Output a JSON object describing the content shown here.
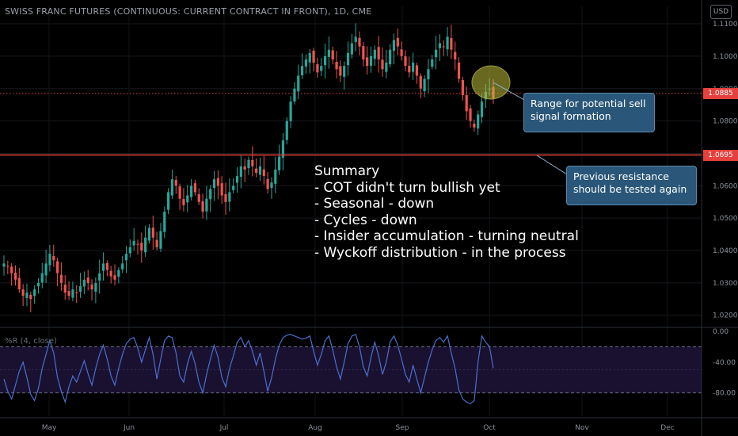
{
  "header": {
    "title": "SWISS FRANC FUTURES (CONTINUOUS: CURRENT CONTRACT IN FRONT), 1D, CME",
    "currency_button": "USD"
  },
  "colors": {
    "background": "#000000",
    "up_candle": "#26a69a",
    "down_candle": "#ef5350",
    "resistance_line": "#e5403d",
    "oscillator_line": "#4a6fd0",
    "callout_fill": "#2a5779"
  },
  "annotations": {
    "summary": [
      "Summary",
      "- COT didn't turn bullish yet",
      "- Seasonal - down",
      "- Cycles - down",
      "- Insider accumulation - turning neutral",
      "- Wyckoff distribution - in the process"
    ],
    "callout_sell": [
      "Range for potential sell",
      "signal formation"
    ],
    "callout_resistance": [
      "Previous resistance",
      "should be tested again"
    ]
  },
  "price_tags": {
    "last_price": "1.0885",
    "resistance": "1.0695"
  },
  "oscillator": {
    "label": "%R (4, close)"
  },
  "chart_data": [
    {
      "type": "candlestick",
      "x_axis_labels": [
        "May",
        "Jun",
        "Jul",
        "Aug",
        "Sep",
        "Oct",
        "Nov",
        "Dec"
      ],
      "y_ticks": [
        "1.1100",
        "1.1000",
        "1.0900",
        "1.0800",
        "1.0700",
        "1.0600",
        "1.0500",
        "1.0400",
        "1.0300",
        "1.0200"
      ],
      "ylim": [
        1.017,
        1.1105
      ],
      "horizontal_lines": [
        {
          "label": "last_price",
          "value": 1.0885,
          "style": "dotted"
        },
        {
          "label": "resistance",
          "value": 1.0695,
          "style": "solid"
        }
      ],
      "close_series_approx": [
        1.036,
        1.035,
        1.033,
        1.031,
        1.028,
        1.026,
        1.027,
        1.025,
        1.028,
        1.03,
        1.033,
        1.036,
        1.039,
        1.037,
        1.033,
        1.03,
        1.027,
        1.026,
        1.028,
        1.027,
        1.029,
        1.031,
        1.03,
        1.028,
        1.03,
        1.033,
        1.036,
        1.034,
        1.032,
        1.031,
        1.034,
        1.036,
        1.039,
        1.041,
        1.043,
        1.042,
        1.04,
        1.044,
        1.047,
        1.044,
        1.041,
        1.046,
        1.052,
        1.058,
        1.062,
        1.06,
        1.056,
        1.054,
        1.057,
        1.06,
        1.058,
        1.055,
        1.052,
        1.056,
        1.059,
        1.062,
        1.06,
        1.057,
        1.055,
        1.058,
        1.06,
        1.063,
        1.066,
        1.065,
        1.068,
        1.066,
        1.064,
        1.066,
        1.063,
        1.059,
        1.061,
        1.065,
        1.069,
        1.074,
        1.08,
        1.086,
        1.09,
        1.094,
        1.097,
        1.099,
        1.101,
        1.098,
        1.095,
        1.097,
        1.1,
        1.102,
        1.099,
        1.096,
        1.094,
        1.097,
        1.101,
        1.104,
        1.106,
        1.103,
        1.099,
        1.097,
        1.1,
        1.102,
        1.099,
        1.096,
        1.098,
        1.102,
        1.105,
        1.103,
        1.1,
        1.097,
        1.095,
        1.098,
        1.094,
        1.09,
        1.093,
        1.096,
        1.099,
        1.102,
        1.104,
        1.103,
        1.106,
        1.102,
        1.099,
        1.093,
        1.088,
        1.083,
        1.08,
        1.078,
        1.082,
        1.086,
        1.089,
        1.09,
        1.087
      ],
      "event_range_note": "price ranges approx 1.020 to 1.110 between May and early October"
    },
    {
      "type": "line",
      "name": "%R (4, close)",
      "y_ticks": [
        "0.00",
        "-40.00",
        "-80.00"
      ],
      "ylim": [
        -100,
        0
      ],
      "levels": [
        -20,
        -80
      ],
      "values": [
        -62,
        -78,
        -88,
        -70,
        -52,
        -40,
        -60,
        -82,
        -90,
        -74,
        -48,
        -30,
        -12,
        -28,
        -60,
        -78,
        -92,
        -72,
        -58,
        -66,
        -52,
        -38,
        -55,
        -70,
        -48,
        -30,
        -18,
        -36,
        -58,
        -70,
        -48,
        -30,
        -16,
        -10,
        -8,
        -22,
        -40,
        -24,
        -8,
        -30,
        -62,
        -36,
        -12,
        -6,
        -8,
        -28,
        -58,
        -66,
        -42,
        -26,
        -42,
        -66,
        -80,
        -56,
        -36,
        -18,
        -34,
        -60,
        -72,
        -48,
        -32,
        -14,
        -8,
        -20,
        -12,
        -26,
        -44,
        -28,
        -52,
        -78,
        -60,
        -36,
        -18,
        -8,
        -5,
        -4,
        -6,
        -8,
        -10,
        -9,
        -6,
        -26,
        -44,
        -30,
        -12,
        -6,
        -24,
        -46,
        -62,
        -40,
        -16,
        -6,
        -4,
        -20,
        -46,
        -58,
        -34,
        -14,
        -32,
        -56,
        -40,
        -14,
        -6,
        -18,
        -36,
        -56,
        -66,
        -44,
        -62,
        -80,
        -60,
        -40,
        -24,
        -12,
        -8,
        -14,
        -6,
        -28,
        -48,
        -76,
        -88,
        -92,
        -94,
        -90,
        -40,
        -6,
        -14,
        -20,
        -48
      ]
    }
  ]
}
